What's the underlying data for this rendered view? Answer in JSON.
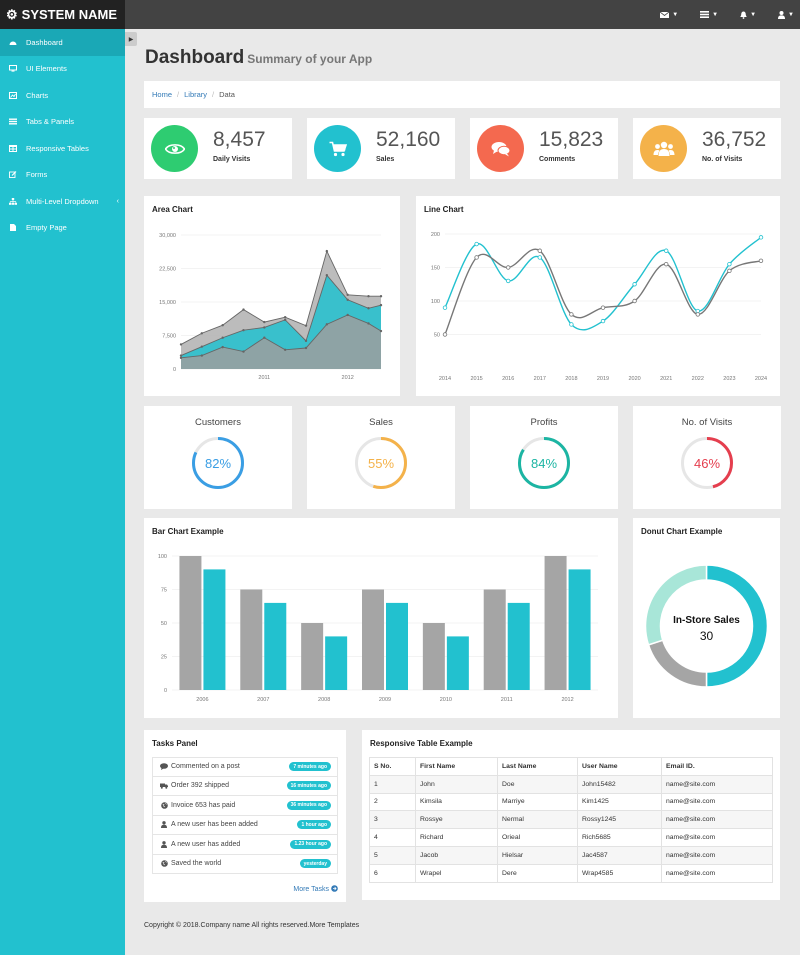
{
  "brand": {
    "name": "SYSTEM NAME"
  },
  "topbar": {
    "icons": [
      "envelope-icon",
      "tasks-icon",
      "bell-icon",
      "user-icon"
    ]
  },
  "sidebar": {
    "items": [
      {
        "label": "Dashboard",
        "icon": "dashboard-icon",
        "active": true
      },
      {
        "label": "UI Elements",
        "icon": "desktop-icon"
      },
      {
        "label": "Charts",
        "icon": "chart-icon"
      },
      {
        "label": "Tabs & Panels",
        "icon": "panels-icon"
      },
      {
        "label": "Responsive Tables",
        "icon": "table-icon"
      },
      {
        "label": "Forms",
        "icon": "edit-icon"
      },
      {
        "label": "Multi-Level Dropdown",
        "icon": "sitemap-icon",
        "has_submenu": true
      },
      {
        "label": "Empty Page",
        "icon": "file-icon"
      }
    ]
  },
  "page": {
    "title": "Dashboard",
    "subtitle": "Summary of your App"
  },
  "breadcrumb": {
    "home": "Home",
    "library": "Library",
    "current": "Data"
  },
  "stats": [
    {
      "value": "8,457",
      "label": "Daily Visits",
      "color": "#2ecc71",
      "icon": "eye-icon"
    },
    {
      "value": "52,160",
      "label": "Sales",
      "color": "#22c1cf",
      "icon": "cart-icon"
    },
    {
      "value": "15,823",
      "label": "Comments",
      "color": "#f4694f",
      "icon": "comments-icon"
    },
    {
      "value": "36,752",
      "label": "No. of Visits",
      "color": "#f4b24a",
      "icon": "users-icon"
    }
  ],
  "area_chart": {
    "title": "Area Chart",
    "chart_data": {
      "type": "area",
      "yticks": [
        "0",
        "7,500",
        "15,000",
        "22,500",
        "30,000"
      ],
      "ylim": [
        0,
        30000
      ],
      "xticks": [
        {
          "label": "2011",
          "x": 2011
        },
        {
          "label": "2012",
          "x": 2012
        }
      ],
      "xlim": [
        2010,
        2012.4
      ],
      "x": [
        2010.0,
        2010.25,
        2010.5,
        2010.75,
        2011.0,
        2011.25,
        2011.5,
        2011.75,
        2012.0,
        2012.25,
        2012.4
      ],
      "series": [
        {
          "color": "#b0b0b0",
          "values": [
            5500,
            8000,
            9800,
            13300,
            10500,
            11600,
            9700,
            26400,
            16600,
            16300,
            16300
          ]
        },
        {
          "color": "#22c1cf",
          "values": [
            3000,
            5000,
            7000,
            8700,
            9300,
            11000,
            6300,
            21000,
            15500,
            13600,
            14300
          ]
        },
        {
          "color": "#9e9e9e",
          "values": [
            2500,
            3000,
            4900,
            3900,
            7000,
            4300,
            4700,
            10000,
            12100,
            10200,
            8500
          ]
        }
      ]
    }
  },
  "line_chart": {
    "title": "Line Chart",
    "chart_data": {
      "type": "line",
      "x": [
        "2014",
        "2015",
        "2016",
        "2017",
        "2018",
        "2019",
        "2020",
        "2021",
        "2022",
        "2023",
        "2024"
      ],
      "yticks": [
        "50",
        "100",
        "150",
        "200"
      ],
      "ylim": [
        0,
        200
      ],
      "series": [
        {
          "color": "#22c1cf",
          "values": [
            90,
            185,
            130,
            165,
            65,
            70,
            125,
            175,
            85,
            155,
            195
          ]
        },
        {
          "color": "#777777",
          "values": [
            50,
            165,
            150,
            175,
            80,
            90,
            100,
            155,
            80,
            145,
            160
          ]
        }
      ]
    }
  },
  "kpis": [
    {
      "title": "Customers",
      "value": "82%",
      "percent": 82,
      "color": "#3a9ee4"
    },
    {
      "title": "Sales",
      "value": "55%",
      "percent": 55,
      "color": "#f4b24a"
    },
    {
      "title": "Profits",
      "value": "84%",
      "percent": 84,
      "color": "#1cb5a3"
    },
    {
      "title": "No. of Visits",
      "value": "46%",
      "percent": 46,
      "color": "#e53e4e"
    }
  ],
  "bar_chart": {
    "title": "Bar Chart Example",
    "chart_data": {
      "type": "bar",
      "categories": [
        "2006",
        "2007",
        "2008",
        "2009",
        "2010",
        "2011",
        "2012"
      ],
      "yticks": [
        "0",
        "25",
        "50",
        "75",
        "100"
      ],
      "ylim": [
        0,
        100
      ],
      "series": [
        {
          "color": "#a5a5a5",
          "values": [
            100,
            75,
            50,
            75,
            50,
            75,
            100
          ]
        },
        {
          "color": "#22c1cf",
          "values": [
            90,
            65,
            40,
            65,
            40,
            65,
            90
          ]
        }
      ]
    }
  },
  "donut_chart": {
    "title": "Donut Chart Example",
    "center_label": "In-Store Sales",
    "center_value": "30",
    "chart_data": {
      "type": "pie",
      "slices": [
        {
          "value": 50,
          "color": "#22c1cf"
        },
        {
          "value": 20,
          "color": "#a5a5a5"
        },
        {
          "value": 30,
          "color": "#a8e6d8"
        }
      ]
    }
  },
  "tasks": {
    "title": "Tasks Panel",
    "items": [
      {
        "icon": "comment-icon",
        "text": "Commented on a post",
        "time": "7 minutes ago"
      },
      {
        "icon": "truck-icon",
        "text": "Order 392 shipped",
        "time": "16 minutes ago"
      },
      {
        "icon": "globe-icon",
        "text": "Invoice 653 has paid",
        "time": "36 minutes ago"
      },
      {
        "icon": "user-icon",
        "text": "A new user has been added",
        "time": "1 hour ago"
      },
      {
        "icon": "user-icon",
        "text": "A new user has added",
        "time": "1.23 hour ago"
      },
      {
        "icon": "globe-icon",
        "text": "Saved the world",
        "time": "yesterday"
      }
    ],
    "more": "More Tasks"
  },
  "table": {
    "title": "Responsive Table Example",
    "headers": [
      "S No.",
      "First Name",
      "Last Name",
      "User Name",
      "Email ID."
    ],
    "rows": [
      [
        "1",
        "John",
        "Doe",
        "John15482",
        "name@site.com"
      ],
      [
        "2",
        "Kimsila",
        "Marriye",
        "Kim1425",
        "name@site.com"
      ],
      [
        "3",
        "Rossye",
        "Nermal",
        "Rossy1245",
        "name@site.com"
      ],
      [
        "4",
        "Richard",
        "Orieal",
        "Rich5685",
        "name@site.com"
      ],
      [
        "5",
        "Jacob",
        "Hielsar",
        "Jac4587",
        "name@site.com"
      ],
      [
        "6",
        "Wrapel",
        "Dere",
        "Wrap4585",
        "name@site.com"
      ]
    ]
  },
  "footer": {
    "text": "Copyright © 2018.Company name All rights reserved.More Templates"
  }
}
